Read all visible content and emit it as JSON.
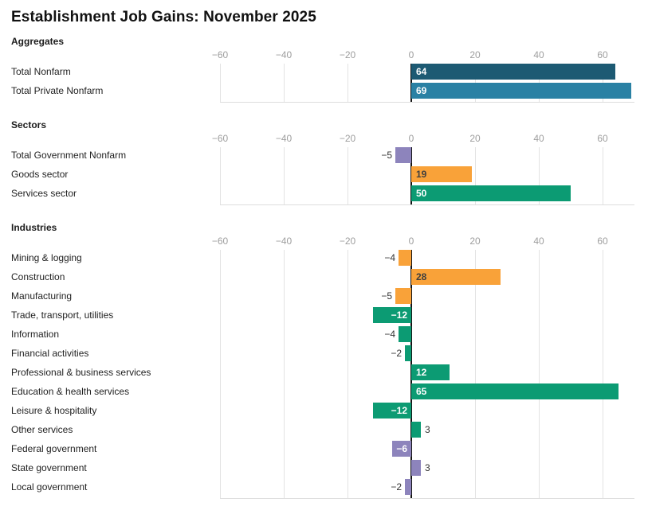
{
  "title": "Establishment Job Gains: November 2025",
  "colors": {
    "dark_blue": "#1d5a73",
    "light_blue": "#2a81a4",
    "green": "#0c9b73",
    "orange": "#f9a239",
    "purple": "#8d84bc",
    "grid_line": "#e3e3e3",
    "zero_axis": "#141414",
    "bottom_axis": "#dddddd",
    "tick_text": "#9e9e9e",
    "label_text": "#1f1f1f",
    "value_on_orange": "#3f3f3f",
    "value_white": "#ffffff"
  },
  "chart_data": [
    {
      "type": "bar",
      "orientation": "horizontal",
      "title": "Aggregates",
      "xlim": [
        -60,
        70
      ],
      "xticks": [
        -60,
        -40,
        -20,
        0,
        20,
        40,
        60
      ],
      "grid": true,
      "categories": [
        "Total Nonfarm",
        "Total Private Nonfarm"
      ],
      "values": [
        64,
        69
      ],
      "bar_colors": [
        "dark_blue",
        "light_blue"
      ]
    },
    {
      "type": "bar",
      "orientation": "horizontal",
      "title": "Sectors",
      "xlim": [
        -60,
        70
      ],
      "xticks": [
        -60,
        -40,
        -20,
        0,
        20,
        40,
        60
      ],
      "grid": true,
      "categories": [
        "Total Government Nonfarm",
        "Goods sector",
        "Services sector"
      ],
      "values": [
        -5,
        19,
        50
      ],
      "bar_colors": [
        "purple",
        "orange",
        "green"
      ]
    },
    {
      "type": "bar",
      "orientation": "horizontal",
      "title": "Industries",
      "xlim": [
        -60,
        70
      ],
      "xticks": [
        -60,
        -40,
        -20,
        0,
        20,
        40,
        60
      ],
      "grid": true,
      "categories": [
        "Mining & logging",
        "Construction",
        "Manufacturing",
        "Trade, transport, utilities",
        "Information",
        "Financial activities",
        "Professional & business services",
        "Education & health services",
        "Leisure & hospitality",
        "Other services",
        "Federal government",
        "State government",
        "Local government"
      ],
      "values": [
        -4,
        28,
        -5,
        -12,
        -4,
        -2,
        12,
        65,
        -12,
        3,
        -6,
        3,
        -2
      ],
      "bar_colors": [
        "orange",
        "orange",
        "orange",
        "green",
        "green",
        "green",
        "green",
        "green",
        "green",
        "green",
        "purple",
        "purple",
        "purple"
      ]
    }
  ]
}
